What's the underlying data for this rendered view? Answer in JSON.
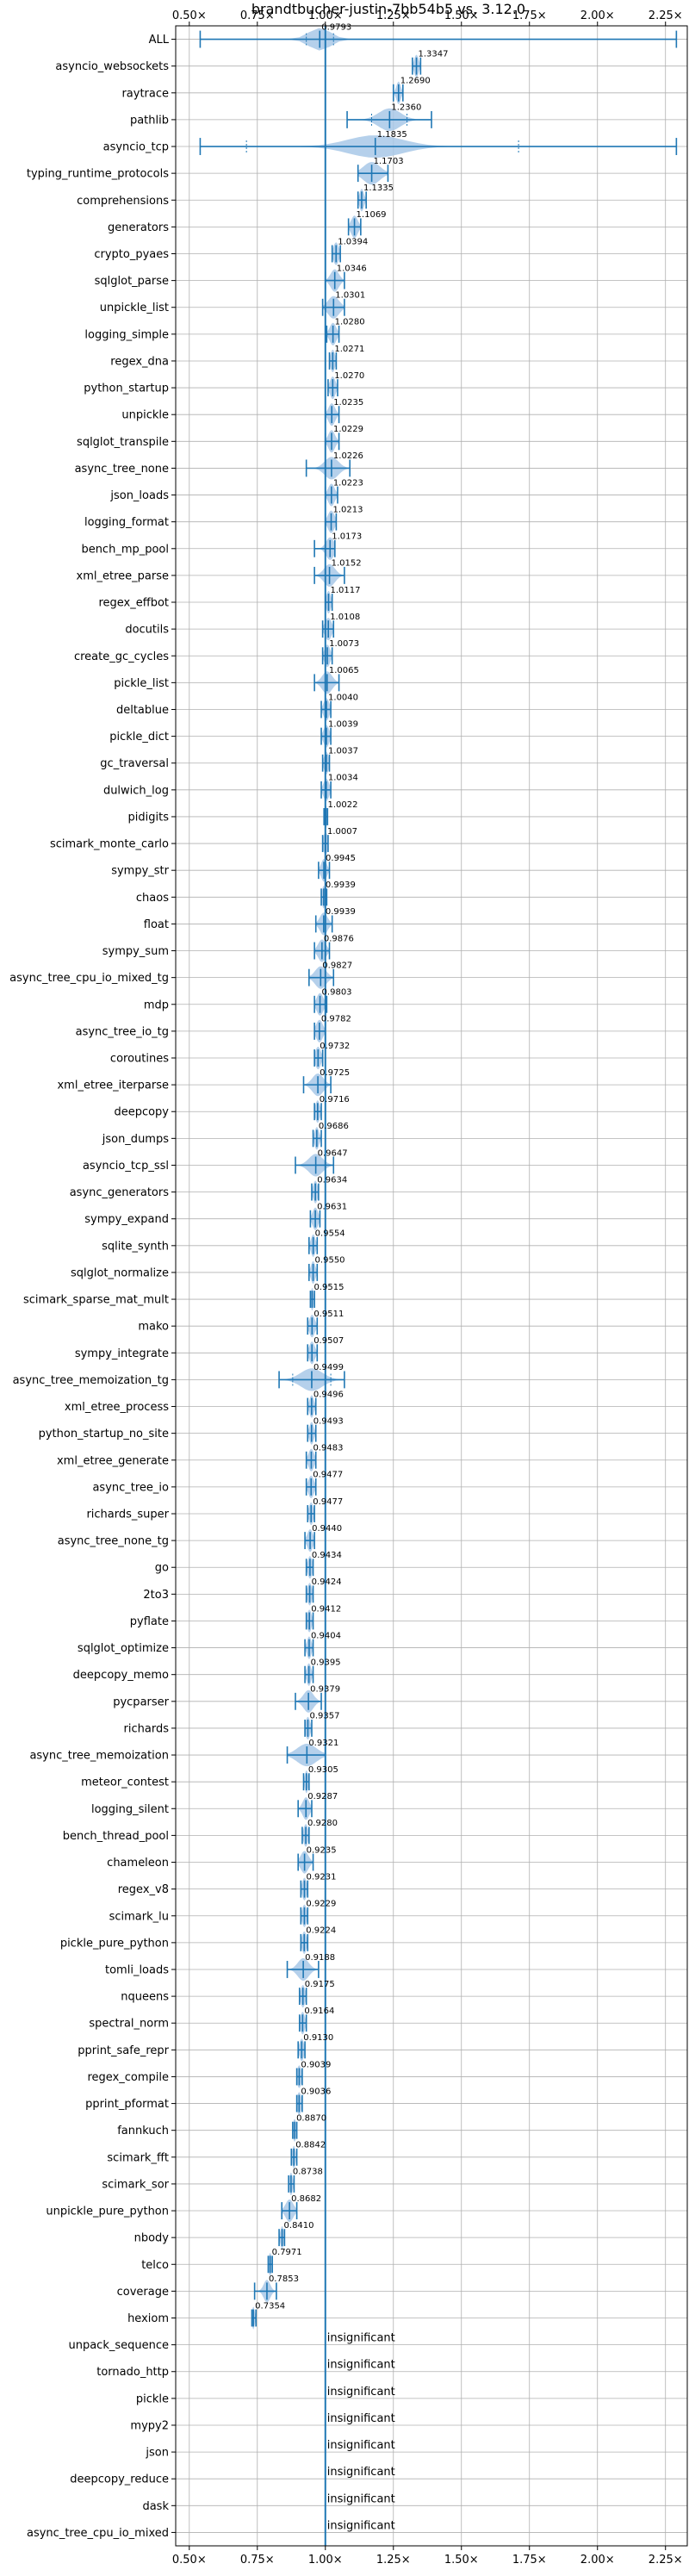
{
  "chart_data": {
    "type": "violin",
    "title": "brandtbucher-justin-7bb54b5 vs. 3.12.0",
    "xlim": [
      0.45,
      2.33
    ],
    "reference_line": 1.0,
    "x_ticks": [
      0.5,
      0.75,
      1.0,
      1.25,
      1.5,
      1.75,
      2.0,
      2.25
    ],
    "x_tick_labels": [
      "0.50×",
      "0.75×",
      "1.00×",
      "1.25×",
      "1.50×",
      "1.75×",
      "2.00×",
      "2.25×"
    ],
    "grid": true,
    "insignificant_label": "insignificant",
    "colors": {
      "accent": "#1f77b4",
      "violin": "#a8c8e8",
      "grid": "#b0b0b0"
    },
    "benchmarks": [
      {
        "name": "ALL",
        "value": 0.9793,
        "label": "0.9793",
        "min": 0.54,
        "max": 2.29,
        "spread": 0.04,
        "q1": 0.93,
        "q3": 1.03
      },
      {
        "name": "asyncio_websockets",
        "value": 1.3347,
        "label": "1.3347",
        "min": 1.32,
        "max": 1.35,
        "spread": 0.008
      },
      {
        "name": "raytrace",
        "value": 1.269,
        "label": "1.2690",
        "min": 1.25,
        "max": 1.285,
        "spread": 0.008
      },
      {
        "name": "pathlib",
        "value": 1.236,
        "label": "1.2360",
        "min": 1.08,
        "max": 1.39,
        "spread": 0.04,
        "q1": 1.17,
        "q3": 1.3
      },
      {
        "name": "asyncio_tcp",
        "value": 1.1835,
        "label": "1.1835",
        "min": 0.54,
        "max": 2.29,
        "spread": 0.1,
        "q1": 0.71,
        "q3": 1.71
      },
      {
        "name": "typing_runtime_protocols",
        "value": 1.1703,
        "label": "1.1703",
        "min": 1.12,
        "max": 1.23,
        "spread": 0.03
      },
      {
        "name": "comprehensions",
        "value": 1.1335,
        "label": "1.1335",
        "min": 1.12,
        "max": 1.15,
        "spread": 0.008
      },
      {
        "name": "generators",
        "value": 1.1069,
        "label": "1.1069",
        "min": 1.085,
        "max": 1.13,
        "spread": 0.012
      },
      {
        "name": "crypto_pyaes",
        "value": 1.0394,
        "label": "1.0394",
        "min": 1.025,
        "max": 1.055,
        "spread": 0.01
      },
      {
        "name": "sqlglot_parse",
        "value": 1.0346,
        "label": "1.0346",
        "min": 1.0,
        "max": 1.07,
        "spread": 0.015
      },
      {
        "name": "unpickle_list",
        "value": 1.0301,
        "label": "1.0301",
        "min": 0.99,
        "max": 1.07,
        "spread": 0.02
      },
      {
        "name": "logging_simple",
        "value": 1.028,
        "label": "1.0280",
        "min": 1.005,
        "max": 1.05,
        "spread": 0.012
      },
      {
        "name": "regex_dna",
        "value": 1.0271,
        "label": "1.0271",
        "min": 1.015,
        "max": 1.04,
        "spread": 0.008
      },
      {
        "name": "python_startup",
        "value": 1.027,
        "label": "1.0270",
        "min": 1.01,
        "max": 1.045,
        "spread": 0.01
      },
      {
        "name": "unpickle",
        "value": 1.0235,
        "label": "1.0235",
        "min": 1.0,
        "max": 1.05,
        "spread": 0.012
      },
      {
        "name": "sqlglot_transpile",
        "value": 1.0229,
        "label": "1.0229",
        "min": 1.0,
        "max": 1.05,
        "spread": 0.012
      },
      {
        "name": "async_tree_none",
        "value": 1.0226,
        "label": "1.0226",
        "min": 0.93,
        "max": 1.09,
        "spread": 0.025
      },
      {
        "name": "json_loads",
        "value": 1.0223,
        "label": "1.0223",
        "min": 1.0,
        "max": 1.045,
        "spread": 0.012
      },
      {
        "name": "logging_format",
        "value": 1.0213,
        "label": "1.0213",
        "min": 1.0,
        "max": 1.04,
        "spread": 0.012
      },
      {
        "name": "bench_mp_pool",
        "value": 1.0173,
        "label": "1.0173",
        "min": 0.96,
        "max": 1.035,
        "spread": 0.015
      },
      {
        "name": "xml_etree_parse",
        "value": 1.0152,
        "label": "1.0152",
        "min": 0.96,
        "max": 1.07,
        "spread": 0.02
      },
      {
        "name": "regex_effbot",
        "value": 1.0117,
        "label": "1.0117",
        "min": 1.0,
        "max": 1.025,
        "spread": 0.008
      },
      {
        "name": "docutils",
        "value": 1.0108,
        "label": "1.0108",
        "min": 0.99,
        "max": 1.03,
        "spread": 0.012
      },
      {
        "name": "create_gc_cycles",
        "value": 1.0073,
        "label": "1.0073",
        "min": 0.99,
        "max": 1.025,
        "spread": 0.01
      },
      {
        "name": "pickle_list",
        "value": 1.0065,
        "label": "1.0065",
        "min": 0.96,
        "max": 1.05,
        "spread": 0.018
      },
      {
        "name": "deltablue",
        "value": 1.004,
        "label": "1.0040",
        "min": 0.985,
        "max": 1.02,
        "spread": 0.01
      },
      {
        "name": "pickle_dict",
        "value": 1.0039,
        "label": "1.0039",
        "min": 0.985,
        "max": 1.02,
        "spread": 0.01
      },
      {
        "name": "gc_traversal",
        "value": 1.0037,
        "label": "1.0037",
        "min": 0.99,
        "max": 1.015,
        "spread": 0.008
      },
      {
        "name": "dulwich_log",
        "value": 1.0034,
        "label": "1.0034",
        "min": 0.985,
        "max": 1.02,
        "spread": 0.01
      },
      {
        "name": "pidigits",
        "value": 1.0022,
        "label": "1.0022",
        "min": 0.995,
        "max": 1.008,
        "spread": 0.005
      },
      {
        "name": "scimark_monte_carlo",
        "value": 1.0007,
        "label": "1.0007",
        "min": 0.99,
        "max": 1.01,
        "spread": 0.008
      },
      {
        "name": "sympy_str",
        "value": 0.9945,
        "label": "0.9945",
        "min": 0.975,
        "max": 1.015,
        "spread": 0.01
      },
      {
        "name": "chaos",
        "value": 0.9939,
        "label": "0.9939",
        "min": 0.985,
        "max": 1.005,
        "spread": 0.006
      },
      {
        "name": "float",
        "value": 0.9939,
        "label": "0.9939",
        "min": 0.965,
        "max": 1.025,
        "spread": 0.014
      },
      {
        "name": "sympy_sum",
        "value": 0.9876,
        "label": "0.9876",
        "min": 0.96,
        "max": 1.015,
        "spread": 0.014
      },
      {
        "name": "async_tree_cpu_io_mixed_tg",
        "value": 0.9827,
        "label": "0.9827",
        "min": 0.94,
        "max": 1.03,
        "spread": 0.02
      },
      {
        "name": "mdp",
        "value": 0.9803,
        "label": "0.9803",
        "min": 0.96,
        "max": 1.005,
        "spread": 0.012
      },
      {
        "name": "async_tree_io_tg",
        "value": 0.9782,
        "label": "0.9782",
        "min": 0.96,
        "max": 1.0,
        "spread": 0.012
      },
      {
        "name": "coroutines",
        "value": 0.9732,
        "label": "0.9732",
        "min": 0.96,
        "max": 0.99,
        "spread": 0.01
      },
      {
        "name": "xml_etree_iterparse",
        "value": 0.9725,
        "label": "0.9725",
        "min": 0.92,
        "max": 1.02,
        "spread": 0.02
      },
      {
        "name": "deepcopy",
        "value": 0.9716,
        "label": "0.9716",
        "min": 0.96,
        "max": 0.985,
        "spread": 0.008
      },
      {
        "name": "json_dumps",
        "value": 0.9686,
        "label": "0.9686",
        "min": 0.955,
        "max": 0.985,
        "spread": 0.008
      },
      {
        "name": "asyncio_tcp_ssl",
        "value": 0.9647,
        "label": "0.9647",
        "min": 0.89,
        "max": 1.03,
        "spread": 0.025
      },
      {
        "name": "async_generators",
        "value": 0.9634,
        "label": "0.9634",
        "min": 0.95,
        "max": 0.975,
        "spread": 0.008
      },
      {
        "name": "sympy_expand",
        "value": 0.9631,
        "label": "0.9631",
        "min": 0.945,
        "max": 0.98,
        "spread": 0.01
      },
      {
        "name": "sqlite_synth",
        "value": 0.9554,
        "label": "0.9554",
        "min": 0.94,
        "max": 0.97,
        "spread": 0.008
      },
      {
        "name": "sqlglot_normalize",
        "value": 0.955,
        "label": "0.9550",
        "min": 0.94,
        "max": 0.97,
        "spread": 0.008
      },
      {
        "name": "scimark_sparse_mat_mult",
        "value": 0.9515,
        "label": "0.9515",
        "min": 0.945,
        "max": 0.96,
        "spread": 0.005
      },
      {
        "name": "mako",
        "value": 0.9511,
        "label": "0.9511",
        "min": 0.935,
        "max": 0.97,
        "spread": 0.01
      },
      {
        "name": "sympy_integrate",
        "value": 0.9507,
        "label": "0.9507",
        "min": 0.935,
        "max": 0.97,
        "spread": 0.01
      },
      {
        "name": "async_tree_memoization_tg",
        "value": 0.9499,
        "label": "0.9499",
        "min": 0.83,
        "max": 1.07,
        "spread": 0.04,
        "q1": 0.88,
        "q3": 1.02
      },
      {
        "name": "xml_etree_process",
        "value": 0.9496,
        "label": "0.9496",
        "min": 0.935,
        "max": 0.965,
        "spread": 0.008
      },
      {
        "name": "python_startup_no_site",
        "value": 0.9493,
        "label": "0.9493",
        "min": 0.935,
        "max": 0.965,
        "spread": 0.008
      },
      {
        "name": "xml_etree_generate",
        "value": 0.9483,
        "label": "0.9483",
        "min": 0.93,
        "max": 0.965,
        "spread": 0.01
      },
      {
        "name": "async_tree_io",
        "value": 0.9477,
        "label": "0.9477",
        "min": 0.93,
        "max": 0.965,
        "spread": 0.01
      },
      {
        "name": "richards_super",
        "value": 0.9477,
        "label": "0.9477",
        "min": 0.935,
        "max": 0.96,
        "spread": 0.008
      },
      {
        "name": "async_tree_none_tg",
        "value": 0.944,
        "label": "0.9440",
        "min": 0.925,
        "max": 0.96,
        "spread": 0.01
      },
      {
        "name": "go",
        "value": 0.9434,
        "label": "0.9434",
        "min": 0.93,
        "max": 0.955,
        "spread": 0.008
      },
      {
        "name": "2to3",
        "value": 0.9424,
        "label": "0.9424",
        "min": 0.93,
        "max": 0.955,
        "spread": 0.008
      },
      {
        "name": "pyflate",
        "value": 0.9412,
        "label": "0.9412",
        "min": 0.93,
        "max": 0.955,
        "spread": 0.008
      },
      {
        "name": "sqlglot_optimize",
        "value": 0.9404,
        "label": "0.9404",
        "min": 0.925,
        "max": 0.955,
        "spread": 0.008
      },
      {
        "name": "deepcopy_memo",
        "value": 0.9395,
        "label": "0.9395",
        "min": 0.925,
        "max": 0.955,
        "spread": 0.008
      },
      {
        "name": "pycparser",
        "value": 0.9379,
        "label": "0.9379",
        "min": 0.89,
        "max": 0.985,
        "spread": 0.018
      },
      {
        "name": "richards",
        "value": 0.9357,
        "label": "0.9357",
        "min": 0.925,
        "max": 0.95,
        "spread": 0.008
      },
      {
        "name": "async_tree_memoization",
        "value": 0.9321,
        "label": "0.9321",
        "min": 0.86,
        "max": 1.0,
        "spread": 0.035
      },
      {
        "name": "meteor_contest",
        "value": 0.9305,
        "label": "0.9305",
        "min": 0.92,
        "max": 0.94,
        "spread": 0.006
      },
      {
        "name": "logging_silent",
        "value": 0.9287,
        "label": "0.9287",
        "min": 0.9,
        "max": 0.95,
        "spread": 0.012
      },
      {
        "name": "bench_thread_pool",
        "value": 0.928,
        "label": "0.9280",
        "min": 0.915,
        "max": 0.94,
        "spread": 0.008
      },
      {
        "name": "chameleon",
        "value": 0.9235,
        "label": "0.9235",
        "min": 0.9,
        "max": 0.955,
        "spread": 0.014
      },
      {
        "name": "regex_v8",
        "value": 0.9231,
        "label": "0.9231",
        "min": 0.91,
        "max": 0.935,
        "spread": 0.008
      },
      {
        "name": "scimark_lu",
        "value": 0.9229,
        "label": "0.9229",
        "min": 0.91,
        "max": 0.935,
        "spread": 0.008
      },
      {
        "name": "pickle_pure_python",
        "value": 0.9224,
        "label": "0.9224",
        "min": 0.91,
        "max": 0.935,
        "spread": 0.008
      },
      {
        "name": "tomli_loads",
        "value": 0.9188,
        "label": "0.9188",
        "min": 0.86,
        "max": 0.975,
        "spread": 0.02
      },
      {
        "name": "nqueens",
        "value": 0.9175,
        "label": "0.9175",
        "min": 0.905,
        "max": 0.93,
        "spread": 0.008
      },
      {
        "name": "spectral_norm",
        "value": 0.9164,
        "label": "0.9164",
        "min": 0.905,
        "max": 0.93,
        "spread": 0.008
      },
      {
        "name": "pprint_safe_repr",
        "value": 0.913,
        "label": "0.9130",
        "min": 0.9,
        "max": 0.925,
        "spread": 0.008
      },
      {
        "name": "regex_compile",
        "value": 0.9039,
        "label": "0.9039",
        "min": 0.895,
        "max": 0.915,
        "spread": 0.008
      },
      {
        "name": "pprint_pformat",
        "value": 0.9036,
        "label": "0.9036",
        "min": 0.895,
        "max": 0.915,
        "spread": 0.008
      },
      {
        "name": "fannkuch",
        "value": 0.887,
        "label": "0.8870",
        "min": 0.88,
        "max": 0.895,
        "spread": 0.006
      },
      {
        "name": "scimark_fft",
        "value": 0.8842,
        "label": "0.8842",
        "min": 0.875,
        "max": 0.895,
        "spread": 0.006
      },
      {
        "name": "scimark_sor",
        "value": 0.8738,
        "label": "0.8738",
        "min": 0.865,
        "max": 0.885,
        "spread": 0.006
      },
      {
        "name": "unpickle_pure_python",
        "value": 0.8682,
        "label": "0.8682",
        "min": 0.84,
        "max": 0.895,
        "spread": 0.014
      },
      {
        "name": "nbody",
        "value": 0.841,
        "label": "0.8410",
        "min": 0.83,
        "max": 0.85,
        "spread": 0.006
      },
      {
        "name": "telco",
        "value": 0.7971,
        "label": "0.7971",
        "min": 0.79,
        "max": 0.805,
        "spread": 0.006
      },
      {
        "name": "coverage",
        "value": 0.7853,
        "label": "0.7853",
        "min": 0.74,
        "max": 0.82,
        "spread": 0.012
      },
      {
        "name": "hexiom",
        "value": 0.7354,
        "label": "0.7354",
        "min": 0.73,
        "max": 0.745,
        "spread": 0.005
      },
      {
        "name": "unpack_sequence",
        "value": null,
        "label": "",
        "insignificant": true
      },
      {
        "name": "tornado_http",
        "value": null,
        "label": "",
        "insignificant": true
      },
      {
        "name": "pickle",
        "value": null,
        "label": "",
        "insignificant": true
      },
      {
        "name": "mypy2",
        "value": null,
        "label": "",
        "insignificant": true
      },
      {
        "name": "json",
        "value": null,
        "label": "",
        "insignificant": true
      },
      {
        "name": "deepcopy_reduce",
        "value": null,
        "label": "",
        "insignificant": true
      },
      {
        "name": "dask",
        "value": null,
        "label": "",
        "insignificant": true
      },
      {
        "name": "async_tree_cpu_io_mixed",
        "value": null,
        "label": "",
        "insignificant": true
      }
    ]
  }
}
